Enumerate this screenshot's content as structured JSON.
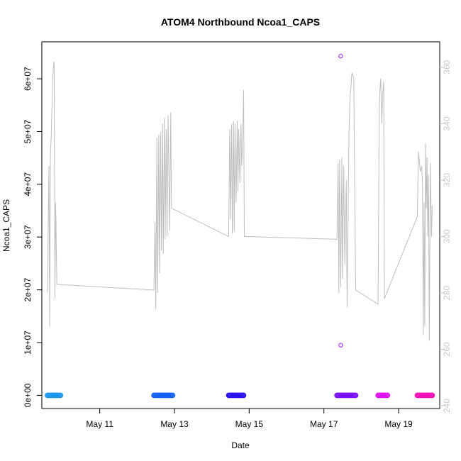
{
  "chart_data": {
    "type": "scatter",
    "title": "ATOM4 Northbound Ncoa1_CAPS",
    "xlabel": "Date",
    "ylabel": "Ncoa1_CAPS",
    "x_tick_labels": [
      "May 11",
      "May 13",
      "May 15",
      "May 17",
      "May 19"
    ],
    "x_tick_days": [
      11,
      13,
      15,
      17,
      19
    ],
    "xlim_days": [
      9.45,
      20.1
    ],
    "ylim": [
      -2500000,
      67000000
    ],
    "y_ticks": [
      0,
      10000000,
      20000000,
      30000000,
      40000000,
      50000000,
      60000000
    ],
    "y_tick_labels": [
      "0e+00",
      "1e+07",
      "2e+07",
      "3e+07",
      "4e+07",
      "5e+07",
      "6e+07"
    ],
    "y2lim": [
      239,
      369
    ],
    "y2_ticks": [
      240,
      260,
      280,
      300,
      320,
      340,
      360
    ],
    "y2_tick_labels": [
      "240",
      "260",
      "280",
      "300",
      "320",
      "340",
      "360"
    ],
    "grid": false,
    "colors": {
      "line": "#bebebe",
      "right_axis": "#c8c8c8",
      "outlier": "#a020f0"
    },
    "outliers": [
      {
        "day": 17.45,
        "value": 64300000
      },
      {
        "day": 17.45,
        "value": 9500000
      }
    ],
    "point_clusters": [
      {
        "start_day": 9.6,
        "end_day": 9.95,
        "value": 0,
        "color": "#1a98f0"
      },
      {
        "start_day": 12.45,
        "end_day": 12.95,
        "value": 0,
        "color": "#1660f5"
      },
      {
        "start_day": 14.45,
        "end_day": 14.85,
        "value": 0,
        "color": "#2b12f0"
      },
      {
        "start_day": 17.35,
        "end_day": 17.85,
        "value": 0,
        "color": "#7a10f5"
      },
      {
        "start_day": 18.45,
        "end_day": 18.7,
        "value": 0,
        "color": "#e010f0"
      },
      {
        "start_day": 19.5,
        "end_day": 19.9,
        "value": 0,
        "color": "#f010b8"
      }
    ],
    "line_series": {
      "name": "",
      "axis": "right",
      "points": [
        [
          9.6,
          280
        ],
        [
          9.64,
          325
        ],
        [
          9.66,
          268
        ],
        [
          9.68,
          330
        ],
        [
          9.7,
          335
        ],
        [
          9.72,
          345
        ],
        [
          9.74,
          355
        ],
        [
          9.76,
          360
        ],
        [
          9.78,
          362
        ],
        [
          9.8,
          278
        ],
        [
          9.82,
          312
        ],
        [
          9.85,
          283
        ],
        [
          12.45,
          281
        ],
        [
          12.48,
          305
        ],
        [
          12.5,
          274
        ],
        [
          12.53,
          335
        ],
        [
          12.55,
          280
        ],
        [
          12.58,
          336
        ],
        [
          12.6,
          287
        ],
        [
          12.63,
          337
        ],
        [
          12.65,
          295
        ],
        [
          12.68,
          340
        ],
        [
          12.7,
          294
        ],
        [
          12.73,
          342
        ],
        [
          12.75,
          299
        ],
        [
          12.78,
          338
        ],
        [
          12.8,
          300
        ],
        [
          12.83,
          343
        ],
        [
          12.87,
          302
        ],
        [
          12.9,
          344
        ],
        [
          12.92,
          310
        ],
        [
          14.45,
          300
        ],
        [
          14.48,
          338
        ],
        [
          14.5,
          306
        ],
        [
          14.53,
          340
        ],
        [
          14.55,
          301
        ],
        [
          14.58,
          341
        ],
        [
          14.6,
          302
        ],
        [
          14.62,
          340
        ],
        [
          14.65,
          312
        ],
        [
          14.68,
          341
        ],
        [
          14.7,
          316
        ],
        [
          14.72,
          338
        ],
        [
          14.75,
          319
        ],
        [
          14.78,
          340
        ],
        [
          14.8,
          325
        ],
        [
          14.83,
          337
        ],
        [
          14.85,
          352
        ],
        [
          14.87,
          300
        ],
        [
          17.35,
          299
        ],
        [
          17.38,
          326
        ],
        [
          17.4,
          280
        ],
        [
          17.42,
          327
        ],
        [
          17.45,
          282
        ],
        [
          17.48,
          328
        ],
        [
          17.5,
          285
        ],
        [
          17.53,
          325
        ],
        [
          17.56,
          290
        ],
        [
          17.6,
          320
        ],
        [
          17.62,
          275
        ],
        [
          17.65,
          308
        ],
        [
          17.67,
          336
        ],
        [
          17.7,
          350
        ],
        [
          17.72,
          352
        ],
        [
          17.75,
          358
        ],
        [
          17.78,
          357
        ],
        [
          17.8,
          356
        ],
        [
          17.85,
          281
        ],
        [
          18.45,
          276
        ],
        [
          18.48,
          345
        ],
        [
          18.5,
          352
        ],
        [
          18.52,
          356
        ],
        [
          18.55,
          340
        ],
        [
          18.57,
          350
        ],
        [
          18.6,
          355
        ],
        [
          18.62,
          278
        ],
        [
          19.5,
          307
        ],
        [
          19.53,
          330
        ],
        [
          19.56,
          326
        ],
        [
          19.58,
          323
        ],
        [
          19.62,
          325
        ],
        [
          19.64,
          318
        ],
        [
          19.66,
          265
        ],
        [
          19.68,
          312
        ],
        [
          19.7,
          268
        ],
        [
          19.72,
          333
        ],
        [
          19.74,
          310
        ],
        [
          19.76,
          328
        ],
        [
          19.78,
          300
        ],
        [
          19.8,
          322
        ],
        [
          19.82,
          263
        ],
        [
          19.85,
          326
        ],
        [
          19.88,
          300
        ],
        [
          19.9,
          311
        ]
      ]
    }
  }
}
